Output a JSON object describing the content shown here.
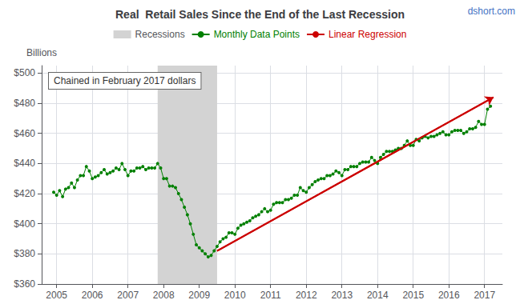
{
  "chart_data": {
    "type": "line",
    "title": "Real  Retail Sales Since the End of the Last Recession",
    "watermark": "dshort.com",
    "ylabel": "Billions",
    "annotation": "Chained in February 2017 dollars",
    "xlim": [
      2004.58,
      2017.5
    ],
    "ylim": [
      360,
      505
    ],
    "xticks": [
      2005,
      2006,
      2007,
      2008,
      2009,
      2010,
      2011,
      2012,
      2013,
      2014,
      2015,
      2016,
      2017
    ],
    "yticks": [
      {
        "value": 360,
        "label": "$360"
      },
      {
        "value": 380,
        "label": "$380"
      },
      {
        "value": 400,
        "label": "$400"
      },
      {
        "value": 420,
        "label": "$420"
      },
      {
        "value": 440,
        "label": "$440"
      },
      {
        "value": 460,
        "label": "$460"
      },
      {
        "value": 480,
        "label": "$480"
      },
      {
        "value": 500,
        "label": "$500"
      }
    ],
    "grid": true,
    "legend": "top",
    "shaded_ranges": [
      {
        "name": "Recessions",
        "start": 2007.833,
        "end": 2009.5,
        "color": "#d3d3d3"
      }
    ],
    "series": [
      {
        "name": "Monthly Data Points",
        "color": "#008000",
        "marker": "circle",
        "x": [
          2004.917,
          2005.0,
          2005.083,
          2005.167,
          2005.25,
          2005.333,
          2005.417,
          2005.5,
          2005.583,
          2005.667,
          2005.75,
          2005.833,
          2005.917,
          2006.0,
          2006.083,
          2006.167,
          2006.25,
          2006.333,
          2006.417,
          2006.5,
          2006.583,
          2006.667,
          2006.75,
          2006.833,
          2006.917,
          2007.0,
          2007.083,
          2007.167,
          2007.25,
          2007.333,
          2007.417,
          2007.5,
          2007.583,
          2007.667,
          2007.75,
          2007.833,
          2007.917,
          2008.0,
          2008.083,
          2008.167,
          2008.25,
          2008.333,
          2008.417,
          2008.5,
          2008.583,
          2008.667,
          2008.75,
          2008.833,
          2008.917,
          2009.0,
          2009.083,
          2009.167,
          2009.25,
          2009.333,
          2009.417,
          2009.5,
          2009.583,
          2009.667,
          2009.75,
          2009.833,
          2009.917,
          2010.0,
          2010.083,
          2010.167,
          2010.25,
          2010.333,
          2010.417,
          2010.5,
          2010.583,
          2010.667,
          2010.75,
          2010.833,
          2010.917,
          2011.0,
          2011.083,
          2011.167,
          2011.25,
          2011.333,
          2011.417,
          2011.5,
          2011.583,
          2011.667,
          2011.75,
          2011.833,
          2011.917,
          2012.0,
          2012.083,
          2012.167,
          2012.25,
          2012.333,
          2012.417,
          2012.5,
          2012.583,
          2012.667,
          2012.75,
          2012.833,
          2012.917,
          2013.0,
          2013.083,
          2013.167,
          2013.25,
          2013.333,
          2013.417,
          2013.5,
          2013.583,
          2013.667,
          2013.75,
          2013.833,
          2013.917,
          2014.0,
          2014.083,
          2014.167,
          2014.25,
          2014.333,
          2014.417,
          2014.5,
          2014.583,
          2014.667,
          2014.75,
          2014.833,
          2014.917,
          2015.0,
          2015.083,
          2015.167,
          2015.25,
          2015.333,
          2015.417,
          2015.5,
          2015.583,
          2015.667,
          2015.75,
          2015.833,
          2015.917,
          2016.0,
          2016.083,
          2016.167,
          2016.25,
          2016.333,
          2016.417,
          2016.5,
          2016.583,
          2016.667,
          2016.75,
          2016.833,
          2016.917,
          2017.0,
          2017.083,
          2017.167
        ],
        "values": [
          421,
          419,
          422,
          418,
          423,
          424,
          427,
          424,
          429,
          432,
          432,
          438,
          435,
          430,
          431,
          432,
          434,
          436,
          433,
          434,
          435,
          437,
          436,
          440,
          436,
          432,
          435,
          435,
          437,
          437,
          438,
          436,
          437,
          437,
          437,
          440,
          437,
          430,
          430,
          425,
          425,
          424,
          420,
          416,
          411,
          406,
          400,
          393,
          386,
          384,
          382,
          380,
          378,
          379,
          382,
          385,
          388,
          390,
          391,
          394,
          394,
          393,
          397,
          399,
          400,
          401,
          402,
          404,
          405,
          406,
          408,
          410,
          408,
          409,
          413,
          414,
          414,
          414,
          416,
          416,
          417,
          419,
          419,
          424,
          422,
          421,
          424,
          426,
          428,
          429,
          430,
          430,
          432,
          432,
          433,
          435,
          434,
          432,
          436,
          436,
          438,
          438,
          438,
          440,
          441,
          441,
          441,
          444,
          442,
          440,
          444,
          446,
          448,
          448,
          448,
          449,
          450,
          450,
          452,
          455,
          452,
          452,
          456,
          455,
          457,
          458,
          457,
          458,
          458,
          459,
          460,
          461,
          459,
          459,
          461,
          462,
          462,
          462,
          460,
          461,
          463,
          463,
          464,
          468,
          466,
          466,
          476,
          478
        ]
      },
      {
        "name": "Linear Regression",
        "color": "#cc0000",
        "marker": "arrow",
        "x": [
          2009.5,
          2017.25
        ],
        "values": [
          382,
          484
        ]
      }
    ]
  }
}
